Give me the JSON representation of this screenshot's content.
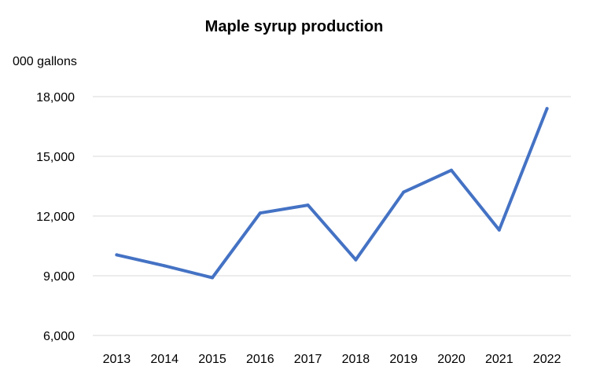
{
  "chart_data": {
    "type": "line",
    "title": "Maple syrup production",
    "ylabel": "000 gallons",
    "xlabel": "",
    "categories": [
      "2013",
      "2014",
      "2015",
      "2016",
      "2017",
      "2018",
      "2019",
      "2020",
      "2021",
      "2022"
    ],
    "series": [
      {
        "values": [
          10050,
          9500,
          8900,
          12150,
          12550,
          9800,
          13200,
          14300,
          11300,
          17400
        ]
      }
    ],
    "ylim": [
      6000,
      18000
    ],
    "yticks": [
      6000,
      9000,
      12000,
      15000,
      18000
    ],
    "ytick_labels": [
      "6,000",
      "9,000",
      "12,000",
      "15,000",
      "18,000"
    ],
    "grid": true,
    "legend": "none",
    "colors": {
      "series": "#4472c4",
      "grid": "#d9d9d9"
    }
  }
}
